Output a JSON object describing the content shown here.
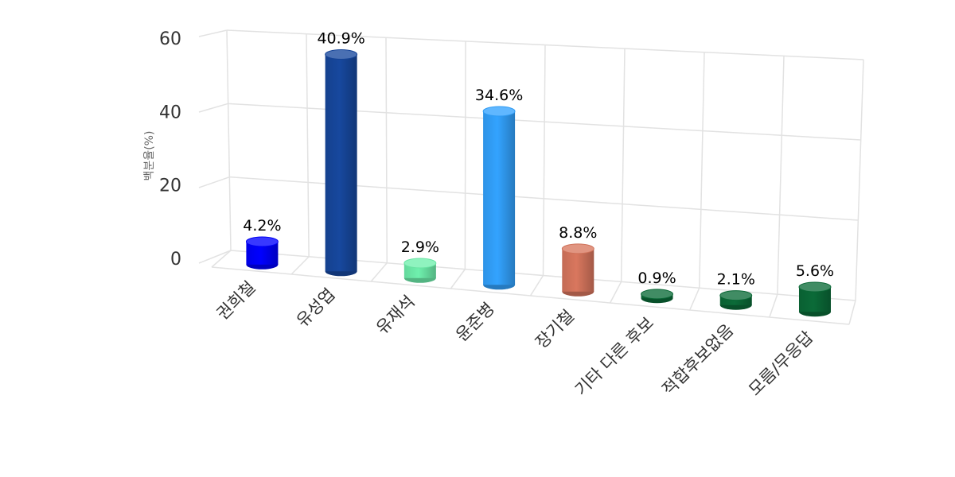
{
  "chart_data": {
    "type": "bar",
    "title": "",
    "xlabel": "",
    "ylabel": "백분율(%)",
    "ylim": [
      0,
      60
    ],
    "yticks": [
      0,
      20,
      40,
      60
    ],
    "grid": true,
    "legend": false,
    "categories": [
      "권희철",
      "유성엽",
      "유재석",
      "윤준병",
      "장기철",
      "기타 다른 후보",
      "적합후보없음",
      "모름/무응답"
    ],
    "values": [
      4.2,
      40.9,
      2.9,
      34.6,
      8.8,
      0.9,
      2.1,
      5.6
    ],
    "data_labels": [
      "4.2%",
      "40.9%",
      "2.9%",
      "34.6%",
      "8.8%",
      "0.9%",
      "2.1%",
      "5.6%"
    ],
    "colors": [
      "#0000ff",
      "#17489e",
      "#6ff0ad",
      "#33a3ff",
      "#d9775e",
      "#0b6b38",
      "#0b6b38",
      "#0b6b38"
    ]
  }
}
